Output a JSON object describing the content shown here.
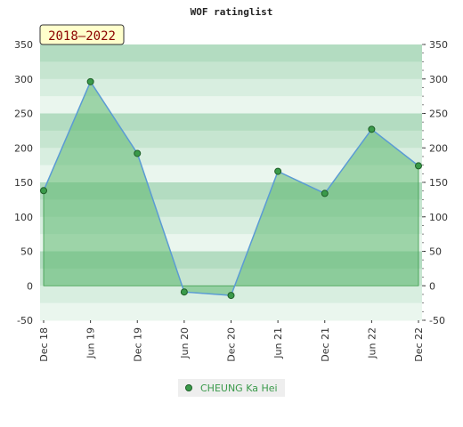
{
  "chart_data": {
    "type": "area",
    "title": "WOF ratinglist",
    "period": "2018–2022",
    "categories": [
      "Dec 18",
      "Jun 19",
      "Dec 19",
      "Jun 20",
      "Dec 20",
      "Jun 21",
      "Dec 21",
      "Jun 22",
      "Dec 22"
    ],
    "series": [
      {
        "name": "CHEUNG Ka Hei",
        "values": [
          138,
          296,
          192,
          -9,
          -14,
          166,
          134,
          227,
          174
        ]
      }
    ],
    "ylim": [
      -50,
      350
    ],
    "yticks": [
      -50,
      0,
      50,
      100,
      150,
      200,
      250,
      300,
      350
    ],
    "legend_position": "bottom",
    "grid": true
  },
  "colors": {
    "line": "#5b9bd5",
    "fill": "#5cb870",
    "marker": "#3a9a4a",
    "legend_text": "#3a9a4a",
    "badge_bg": "#ffffcc"
  }
}
